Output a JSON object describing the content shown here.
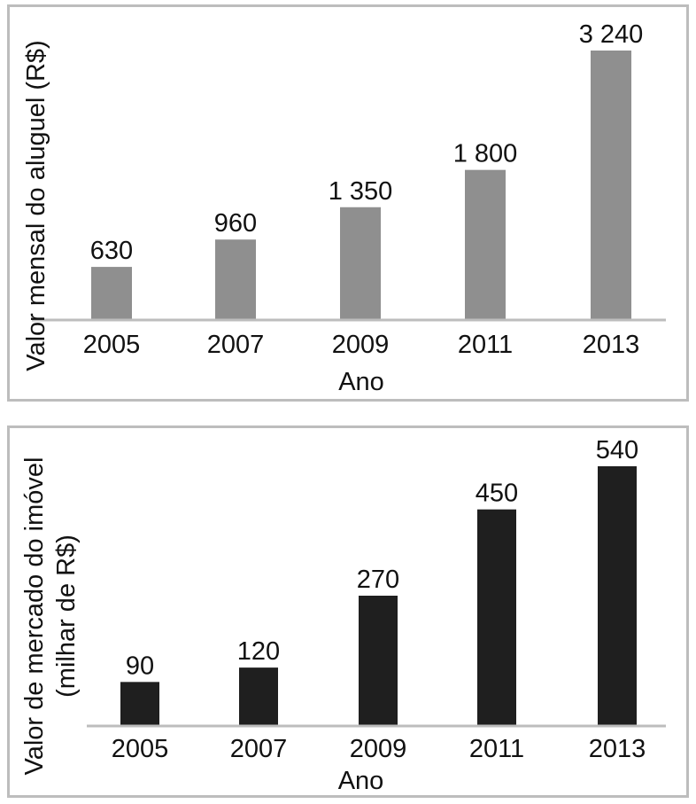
{
  "chart_data": [
    {
      "type": "bar",
      "categories": [
        "2005",
        "2007",
        "2009",
        "2011",
        "2013"
      ],
      "values": [
        630,
        960,
        1350,
        1800,
        3240
      ],
      "value_labels": [
        "630",
        "960",
        "1 350",
        "1 800",
        "3 240"
      ],
      "xlabel": "Ano",
      "ylabel": [
        "Valor mensal do aluguel (R$)"
      ],
      "ylim": [
        0,
        3240
      ],
      "color": "#8f8f8f",
      "grid": false,
      "legend": "none"
    },
    {
      "type": "bar",
      "categories": [
        "2005",
        "2007",
        "2009",
        "2011",
        "2013"
      ],
      "values": [
        90,
        120,
        270,
        450,
        540
      ],
      "value_labels": [
        "90",
        "120",
        "270",
        "450",
        "540"
      ],
      "xlabel": "Ano",
      "ylabel": [
        "Valor de mercado do imóvel",
        "(milhar de R$)"
      ],
      "ylim": [
        0,
        540
      ],
      "color": "#1f1f1f",
      "grid": false,
      "legend": "none"
    }
  ]
}
